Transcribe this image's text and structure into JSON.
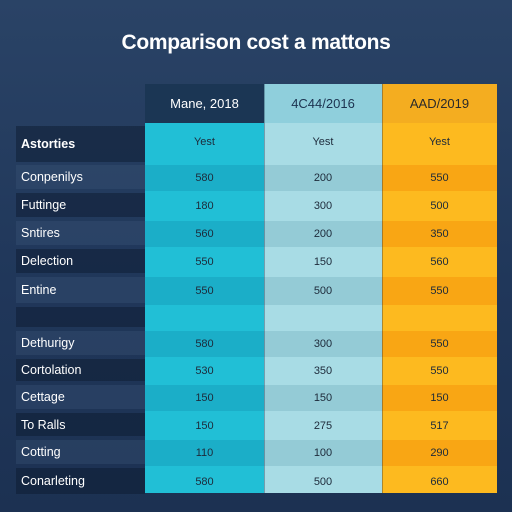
{
  "title": "Comparison cost a mattons",
  "columns": [
    {
      "header": "Mane, 2018",
      "color": "#21bfd6"
    },
    {
      "header": "4C44/2016",
      "color": "#a8dce5"
    },
    {
      "header": "AAD/2019",
      "color": "#fdba1f"
    }
  ],
  "rows": [
    {
      "label": "Astorties",
      "values": [
        "Yest",
        "Yest",
        "Yest"
      ]
    },
    {
      "label": "Conpenilys",
      "values": [
        "580",
        "200",
        "550"
      ]
    },
    {
      "label": "Futtinge",
      "values": [
        "180",
        "300",
        "500"
      ]
    },
    {
      "label": "Sntires",
      "values": [
        "560",
        "200",
        "350"
      ]
    },
    {
      "label": "Delection",
      "values": [
        "550",
        "150",
        "560"
      ]
    },
    {
      "label": "Entine",
      "values": [
        "550",
        "500",
        "550"
      ]
    },
    {
      "label": "",
      "values": [
        "",
        "",
        ""
      ]
    },
    {
      "label": "Dethurigy",
      "values": [
        "580",
        "300",
        "550"
      ]
    },
    {
      "label": "Cortolation",
      "values": [
        "530",
        "350",
        "550"
      ]
    },
    {
      "label": "Cettage",
      "values": [
        "150",
        "150",
        "150"
      ]
    },
    {
      "label": "To Ralls",
      "values": [
        "150",
        "275",
        "517"
      ]
    },
    {
      "label": "Cotting",
      "values": [
        "110",
        "100",
        "290"
      ]
    },
    {
      "label": "Conarleting",
      "values": [
        "580",
        "500",
        "660"
      ]
    }
  ]
}
